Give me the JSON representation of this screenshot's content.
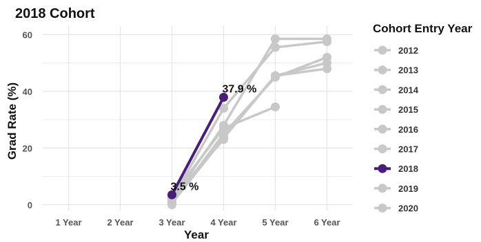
{
  "chart_data": {
    "type": "line",
    "title": "2018 Cohort",
    "xlabel": "Year",
    "ylabel": "Grad Rate (%)",
    "categories": [
      "1 Year",
      "2 Year",
      "3 Year",
      "4 Year",
      "5 Year",
      "6 Year"
    ],
    "yticks": [
      "0",
      "20",
      "40",
      "60"
    ],
    "ylim": [
      -2,
      63
    ],
    "grid": true,
    "legend_title": "Cohort Entry Year",
    "legend_position": "right",
    "highlight_series": "2018",
    "colors": {
      "highlight": "#4b1d7a",
      "other": "#c8c8c8",
      "grid": "#e6e6e6"
    },
    "series": [
      {
        "name": "2012",
        "values": [
          null,
          null,
          0.5,
          23.5,
          45.5,
          48.0
        ]
      },
      {
        "name": "2013",
        "values": [
          null,
          null,
          0.5,
          25.0,
          45.0,
          52.0
        ]
      },
      {
        "name": "2014",
        "values": [
          null,
          null,
          1.0,
          24.0,
          45.5,
          50.0
        ]
      },
      {
        "name": "2015",
        "values": [
          null,
          null,
          1.5,
          28.0,
          58.5,
          58.5
        ]
      },
      {
        "name": "2016",
        "values": [
          null,
          null,
          2.0,
          34.0,
          55.5,
          57.5
        ]
      },
      {
        "name": "2017",
        "values": [
          null,
          null,
          3.0,
          27.0,
          34.5,
          null
        ]
      },
      {
        "name": "2018",
        "values": [
          null,
          null,
          3.5,
          37.9,
          null,
          null
        ]
      },
      {
        "name": "2019",
        "values": [
          null,
          null,
          2.5,
          23.0,
          null,
          null
        ]
      },
      {
        "name": "2020",
        "values": [
          null,
          null,
          0.0,
          null,
          null,
          null
        ]
      }
    ],
    "annotations": [
      {
        "series": "2018",
        "x": "3 Year",
        "y": 3.5,
        "text": "3.5 %"
      },
      {
        "series": "2018",
        "x": "4 Year",
        "y": 37.9,
        "text": "37.9 %"
      }
    ]
  }
}
